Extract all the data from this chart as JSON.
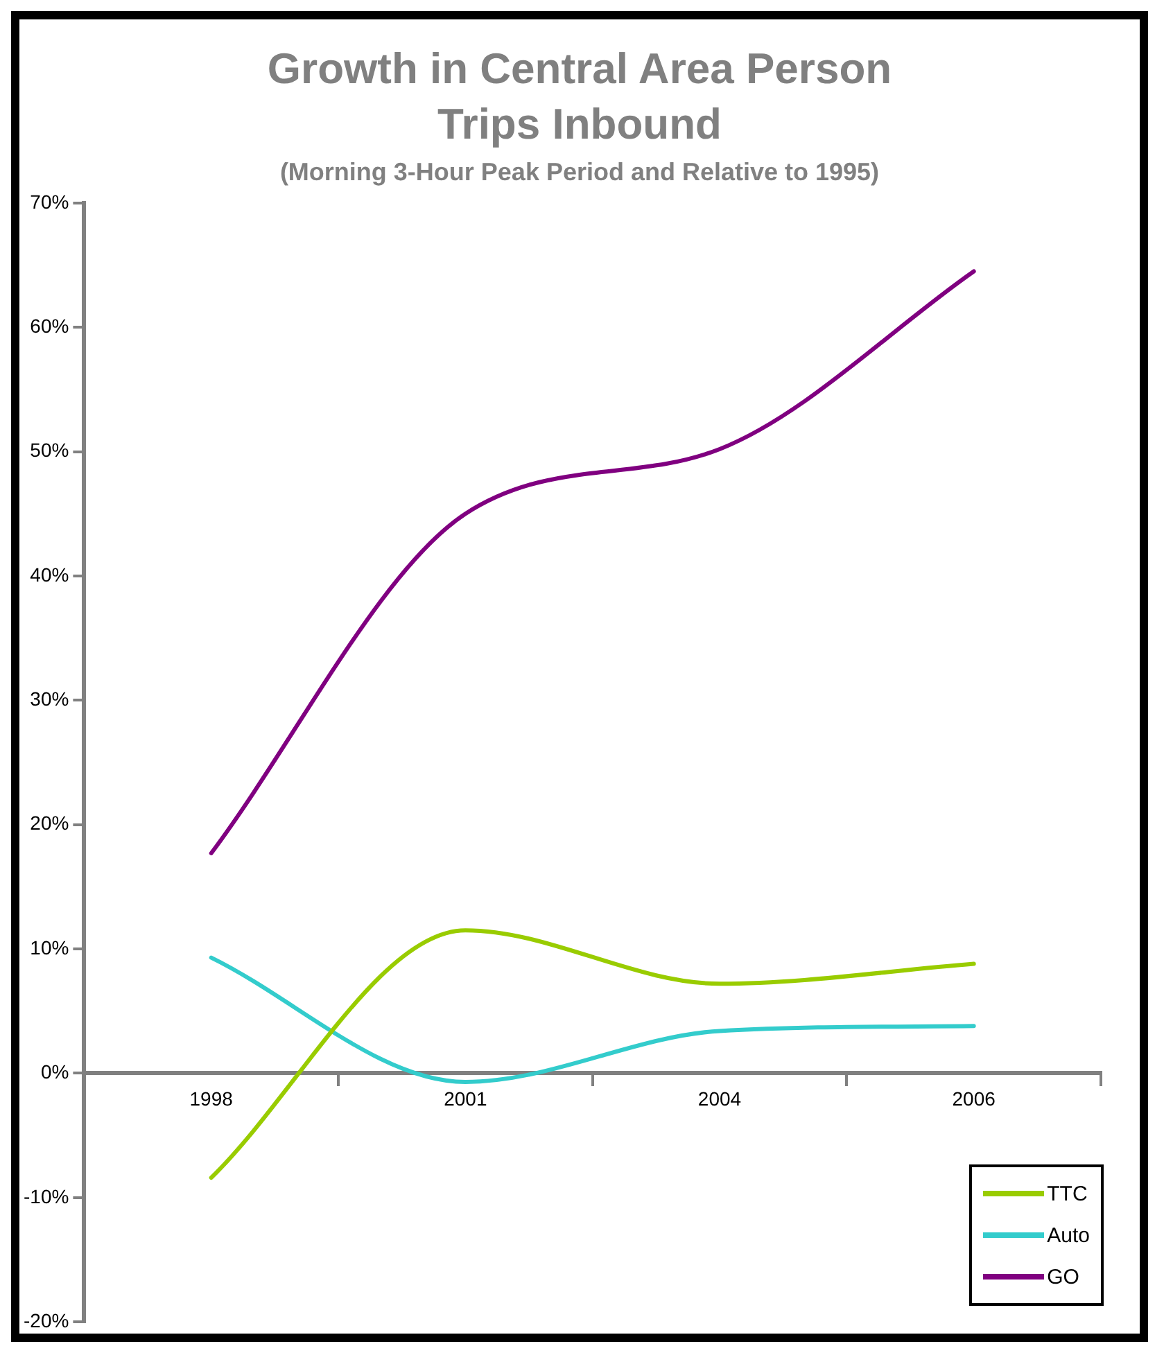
{
  "chart_data": {
    "type": "line",
    "title": "Growth in Central Area Person Trips Inbound",
    "subtitle": "(Morning 3-Hour Peak Period and Relative to 1995)",
    "categories": [
      "1998",
      "2001",
      "2004",
      "2006"
    ],
    "series": [
      {
        "name": "TTC",
        "color": "#99cc00",
        "values": [
          -8.4,
          11.5,
          7.2,
          8.8
        ]
      },
      {
        "name": "Auto",
        "color": "#33cccc",
        "values": [
          9.3,
          -0.7,
          3.4,
          3.8
        ]
      },
      {
        "name": "GO",
        "color": "#800080",
        "values": [
          17.7,
          45,
          50.2,
          64.5
        ]
      }
    ],
    "ylim": [
      -20,
      70
    ],
    "yticks": [
      {
        "value": -20,
        "label": "-20%"
      },
      {
        "value": -10,
        "label": "-10%"
      },
      {
        "value": 0,
        "label": "0%"
      },
      {
        "value": 10,
        "label": "10%"
      },
      {
        "value": 20,
        "label": "20%"
      },
      {
        "value": 30,
        "label": "30%"
      },
      {
        "value": 40,
        "label": "40%"
      },
      {
        "value": 50,
        "label": "50%"
      },
      {
        "value": 60,
        "label": "60%"
      },
      {
        "value": 70,
        "label": "70%"
      }
    ],
    "grid": false,
    "legend": "bottom right",
    "marker": "none",
    "line_style": "solid"
  }
}
